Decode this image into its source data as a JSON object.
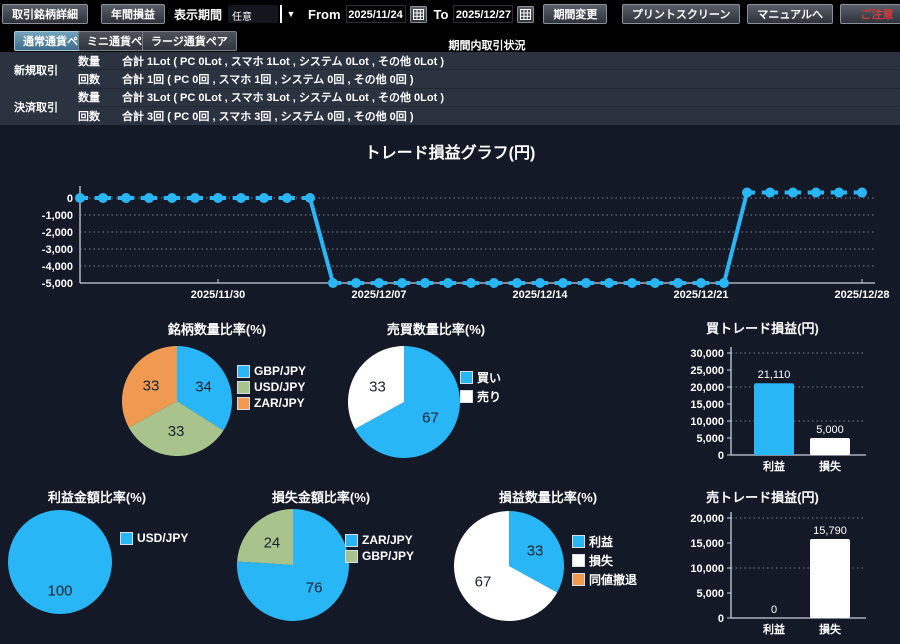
{
  "toolbar": {
    "trade_detail_label": "取引銘柄詳細",
    "annual_pl_label": "年間損益",
    "display_period_label": "表示期間",
    "period_select_value": "任意",
    "from_label": "From",
    "from_date": "2025/11/24",
    "to_label": "To",
    "to_date": "2025/12/27",
    "change_period_label": "期間変更",
    "print_screen_label": "プリントスクリーン",
    "manual_label": "マニュアルへ",
    "caution_label": "ご注意"
  },
  "tabs": [
    {
      "label": "通常通貨ペア",
      "selected": true
    },
    {
      "label": "ミニ通貨ペア",
      "selected": false
    },
    {
      "label": "ラージ通貨ペア",
      "selected": false
    }
  ],
  "summary": {
    "header": "期間内取引状況",
    "groups": [
      {
        "name": "新規取引",
        "metrics": [
          {
            "label": "数量",
            "value": "合計 1Lot ( PC 0Lot , スマホ 1Lot , システム 0Lot , その他 0Lot )"
          },
          {
            "label": "回数",
            "value": "合計 1回 ( PC 0回 , スマホ 1回 , システム 0回 , その他 0回 )"
          }
        ]
      },
      {
        "name": "決済取引",
        "metrics": [
          {
            "label": "数量",
            "value": "合計 3Lot ( PC 0Lot , スマホ 3Lot , システム 0Lot , その他 0Lot )"
          },
          {
            "label": "回数",
            "value": "合計 3回 ( PC 0回 , スマホ 3回 , システム 0回 , その他 0回 )"
          }
        ]
      }
    ]
  },
  "colors": {
    "accent_blue": "#29b6f6",
    "sage_green": "#a9c38c",
    "orange": "#ef9a50",
    "white": "#ffffff",
    "page_bg": "#141927",
    "table_bg": "#2c3340"
  },
  "chart_data": [
    {
      "id": "trade-pl-line",
      "type": "line",
      "title": "トレード損益グラフ(円)",
      "line_color": "#29b6f6",
      "ylim": [
        -5000,
        0
      ],
      "y_ticks": [
        "0",
        "-1,000",
        "-2,000",
        "-3,000",
        "-4,000",
        "-5,000"
      ],
      "x_ticks": [
        "2025/11/30",
        "2025/12/07",
        "2025/12/14",
        "2025/12/21",
        "2025/12/28"
      ],
      "x_tick_days": [
        6,
        13,
        20,
        27,
        34
      ],
      "values": [
        0,
        0,
        0,
        0,
        0,
        0,
        0,
        0,
        0,
        0,
        0,
        -5000,
        -5000,
        -5000,
        -5000,
        -5000,
        -5000,
        -5000,
        -5000,
        -5000,
        -5000,
        -5000,
        -5000,
        -5000,
        -5000,
        -5000,
        -5000,
        -5000,
        -5000,
        320,
        320,
        320,
        320,
        320,
        320
      ]
    },
    {
      "id": "symbol-quantity-ratio",
      "type": "pie",
      "title": "銘柄数量比率(%)",
      "slices": [
        {
          "label": "GBP/JPY",
          "value": 34,
          "color": "#29b6f6"
        },
        {
          "label": "USD/JPY",
          "value": 33,
          "color": "#a9c38c"
        },
        {
          "label": "ZAR/JPY",
          "value": 33,
          "color": "#ef9a50"
        }
      ]
    },
    {
      "id": "buy-sell-quantity-ratio",
      "type": "pie",
      "title": "売買数量比率(%)",
      "slices": [
        {
          "label": "買い",
          "value": 67,
          "color": "#29b6f6"
        },
        {
          "label": "売り",
          "value": 33,
          "color": "#ffffff"
        }
      ]
    },
    {
      "id": "buy-trade-pl",
      "type": "bar",
      "title": "買トレード損益(円)",
      "categories": [
        "利益",
        "損失"
      ],
      "values": [
        21110,
        5000
      ],
      "value_labels": [
        "21,110",
        "5,000"
      ],
      "bar_colors": [
        "#29b6f6",
        "#ffffff"
      ],
      "ylim": [
        0,
        30000
      ],
      "y_ticks": [
        "30,000",
        "25,000",
        "20,000",
        "15,000",
        "10,000",
        "5,000",
        "0"
      ]
    },
    {
      "id": "profit-amount-ratio",
      "type": "pie",
      "title": "利益金額比率(%)",
      "slices": [
        {
          "label": "USD/JPY",
          "value": 100,
          "color": "#29b6f6"
        }
      ]
    },
    {
      "id": "loss-amount-ratio",
      "type": "pie",
      "title": "損失金額比率(%)",
      "slices": [
        {
          "label": "ZAR/JPY",
          "value": 76,
          "color": "#29b6f6"
        },
        {
          "label": "GBP/JPY",
          "value": 24,
          "color": "#a9c38c"
        }
      ]
    },
    {
      "id": "pl-quantity-ratio",
      "type": "pie",
      "title": "損益数量比率(%)",
      "slices": [
        {
          "label": "利益",
          "value": 33,
          "color": "#29b6f6"
        },
        {
          "label": "損失",
          "value": 67,
          "color": "#ffffff"
        },
        {
          "label": "同値撤退",
          "value": 0,
          "color": "#ef9a50"
        }
      ]
    },
    {
      "id": "sell-trade-pl",
      "type": "bar",
      "title": "売トレード損益(円)",
      "categories": [
        "利益",
        "損失"
      ],
      "values": [
        0,
        15790
      ],
      "value_labels": [
        "0",
        "15,790"
      ],
      "bar_colors": [
        "#29b6f6",
        "#ffffff"
      ],
      "ylim": [
        0,
        20000
      ],
      "y_ticks": [
        "20,000",
        "15,000",
        "10,000",
        "5,000",
        "0"
      ]
    }
  ]
}
